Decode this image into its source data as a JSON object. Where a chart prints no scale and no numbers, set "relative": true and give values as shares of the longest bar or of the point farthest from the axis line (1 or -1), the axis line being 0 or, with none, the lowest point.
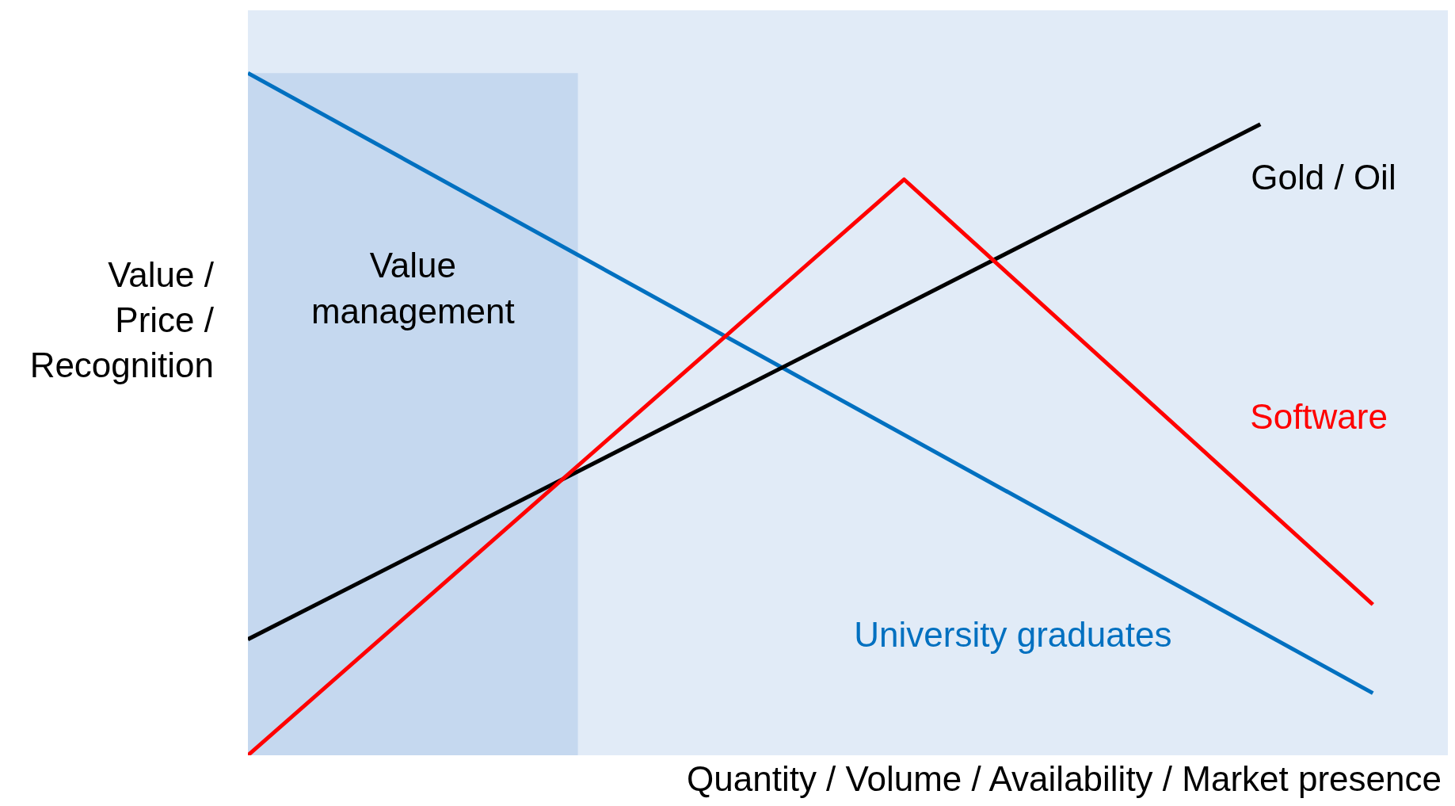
{
  "chart_data": {
    "type": "line",
    "relative": true,
    "xlabel": "Quantity / Volume / Availability / Market presence",
    "ylabel": "Value / Price / Recognition",
    "grid": false,
    "legend": false,
    "marker": "none",
    "line_style": "solid",
    "categories": [
      null,
      null,
      null,
      null,
      null,
      null,
      null,
      null,
      null,
      null,
      null,
      null,
      null,
      null,
      null,
      null,
      null,
      null,
      null,
      null,
      null,
      null,
      null,
      null,
      null,
      null,
      null,
      null,
      null,
      null,
      null,
      null,
      null,
      null,
      null,
      null,
      null,
      null,
      null,
      null,
      null,
      null,
      null,
      null,
      null,
      null,
      null,
      null,
      null,
      null,
      null,
      null,
      null,
      null,
      null,
      null,
      null,
      null,
      null,
      null,
      null,
      null,
      null,
      null,
      null
    ],
    "series": [
      {
        "name": "University graduates",
        "color": "#0070c0",
        "values": [
          1.0,
          null,
          null,
          null,
          null,
          null,
          null,
          null,
          null,
          null,
          null,
          null,
          null,
          null,
          null,
          null,
          null,
          null,
          null,
          null,
          null,
          null,
          null,
          null,
          null,
          null,
          null,
          null,
          null,
          null,
          null,
          null,
          null,
          null,
          null,
          null,
          null,
          null,
          null,
          null,
          null,
          null,
          null,
          null,
          null,
          null,
          null,
          null,
          null,
          null,
          null,
          null,
          null,
          null,
          null,
          null,
          null,
          null,
          null,
          null,
          0.091,
          null,
          null,
          null,
          null
        ]
      },
      {
        "name": "Gold / Oil",
        "color": "#000000",
        "values": [
          0.17,
          null,
          null,
          null,
          null,
          null,
          null,
          null,
          null,
          null,
          null,
          null,
          null,
          null,
          null,
          null,
          null,
          null,
          null,
          null,
          null,
          null,
          null,
          null,
          null,
          null,
          null,
          null,
          null,
          null,
          null,
          null,
          null,
          null,
          null,
          null,
          null,
          null,
          null,
          null,
          null,
          null,
          null,
          null,
          null,
          null,
          null,
          null,
          null,
          null,
          null,
          null,
          null,
          null,
          0.925,
          null,
          null,
          null,
          null,
          null,
          null,
          null,
          null,
          null,
          null
        ]
      },
      {
        "name": "Software",
        "color": "#ff0000",
        "values": [
          0,
          null,
          null,
          null,
          null,
          null,
          null,
          null,
          null,
          null,
          null,
          null,
          null,
          null,
          null,
          null,
          null,
          null,
          null,
          null,
          null,
          null,
          null,
          null,
          null,
          null,
          null,
          null,
          null,
          null,
          null,
          null,
          null,
          null,
          null,
          0.844,
          null,
          null,
          null,
          null,
          null,
          null,
          null,
          null,
          null,
          null,
          null,
          null,
          null,
          null,
          null,
          null,
          null,
          null,
          null,
          null,
          null,
          null,
          null,
          null,
          0.221,
          null,
          null,
          null,
          null
        ]
      }
    ],
    "annotations": [
      "Value management"
    ]
  }
}
